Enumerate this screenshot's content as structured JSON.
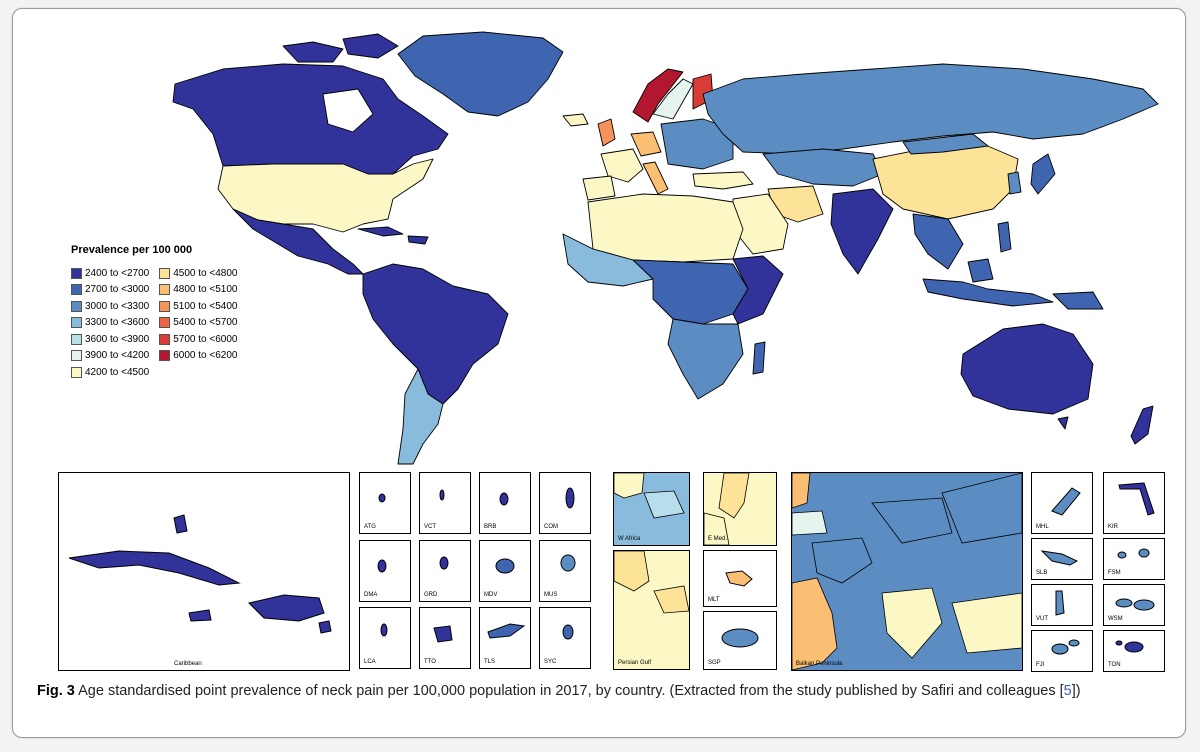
{
  "legend": {
    "title": "Prevalence per 100 000",
    "items": [
      {
        "label": "2400  to  <2700",
        "color": "#31339a"
      },
      {
        "label": "2700  to  <3000",
        "color": "#3f64b0"
      },
      {
        "label": "3000  to  <3300",
        "color": "#5b8dc3"
      },
      {
        "label": "3300  to  <3600",
        "color": "#89bbdc"
      },
      {
        "label": "3600  to  <3900",
        "color": "#b8deec"
      },
      {
        "label": "3900  to  <4200",
        "color": "#e6f4f0"
      },
      {
        "label": "4200  to  <4500",
        "color": "#fbf8c6"
      },
      {
        "label": "4500  to  <4800",
        "color": "#fde398"
      },
      {
        "label": "4800  to  <5100",
        "color": "#fbbf74"
      },
      {
        "label": "5100  to  <5400",
        "color": "#f6935a"
      },
      {
        "label": "5400  to  <5700",
        "color": "#ee6346"
      },
      {
        "label": "5700  to  <6000",
        "color": "#d93b36"
      },
      {
        "label": "6000  to  <6200",
        "color": "#b3162f"
      }
    ]
  },
  "insets": {
    "caribbean": "Caribbean",
    "atg": "ATG",
    "vct": "VCT",
    "brb": "BRB",
    "com": "COM",
    "dma": "DMA",
    "grd": "GRD",
    "mdv": "MDV",
    "mus": "MUS",
    "lca": "LCA",
    "tto": "TTO",
    "tls": "TLS",
    "syc": "SYC",
    "w_africa": "W Africa",
    "e_med": "E Med.",
    "mlt": "MLT",
    "persian_gulf": "Persian Gulf",
    "sgp": "SGP",
    "balkan": "Balkan Peninsula",
    "mhl": "MHL",
    "kir": "KIR",
    "slb": "SLB",
    "fsm": "FSM",
    "vut": "VUT",
    "wsm": "WSM",
    "fji": "FJI",
    "ton": "TON"
  },
  "caption": {
    "fig_label": "Fig. 3",
    "text": "Age standardised point prevalence of neck pain per 100,000 population in 2017, by country. (Extracted from the study published by Safiri and colleagues [",
    "ref": "5",
    "end": "])"
  }
}
